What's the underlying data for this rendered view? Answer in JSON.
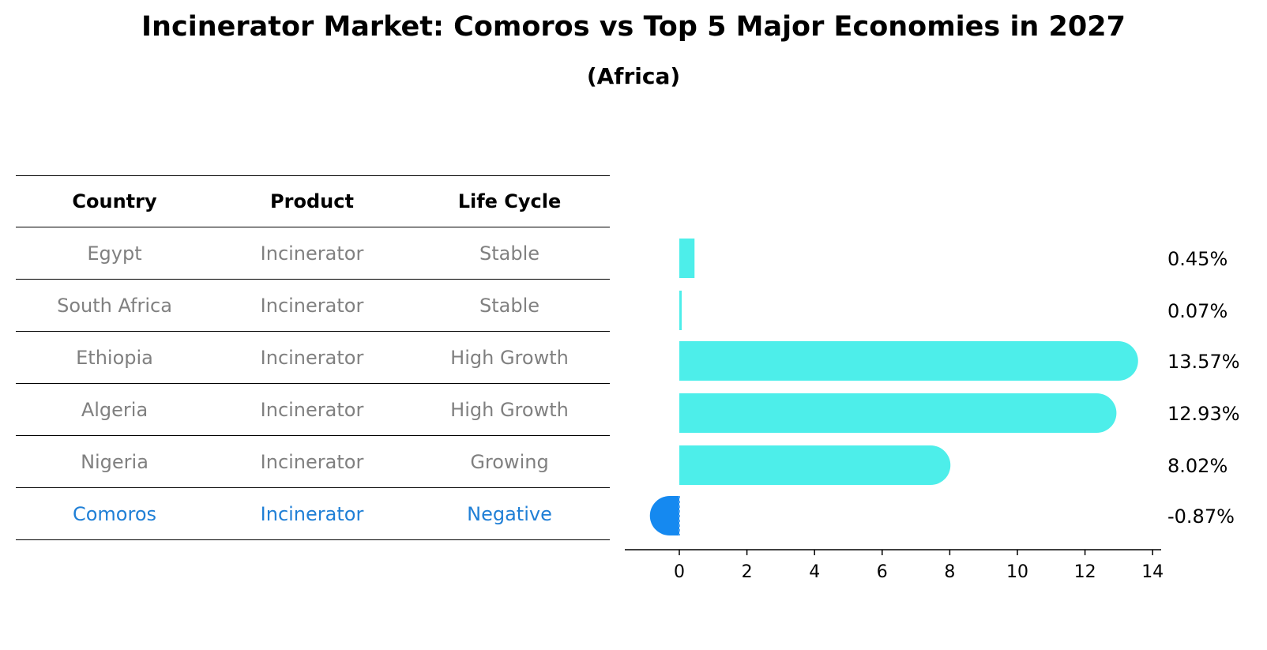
{
  "chart_data": {
    "type": "bar",
    "orientation": "horizontal",
    "title": "Incinerator Market: Comoros vs Top 5 Major Economies in 2027",
    "subtitle": "(Africa)",
    "table": {
      "headers": [
        "Country",
        "Product",
        "Life Cycle"
      ],
      "rows": [
        [
          "Egypt",
          "Incinerator",
          "Stable"
        ],
        [
          "South Africa",
          "Incinerator",
          "Stable"
        ],
        [
          "Ethiopia",
          "Incinerator",
          "High Growth"
        ],
        [
          "Algeria",
          "Incinerator",
          "High Growth"
        ],
        [
          "Nigeria",
          "Incinerator",
          "Growing"
        ],
        [
          "Comoros",
          "Incinerator",
          "Negative"
        ]
      ],
      "highlight_row": 5
    },
    "categories": [
      "Egypt",
      "South Africa",
      "Ethiopia",
      "Algeria",
      "Nigeria",
      "Comoros"
    ],
    "values": [
      0.45,
      0.07,
      13.57,
      12.93,
      8.02,
      -0.87
    ],
    "value_labels": [
      "0.45%",
      "0.07%",
      "13.57%",
      "12.93%",
      "8.02%",
      "-0.87%"
    ],
    "xticks": [
      "0",
      "2",
      "4",
      "6",
      "8",
      "10",
      "12",
      "14"
    ],
    "xlim": [
      -1.6,
      14.3
    ],
    "grid": false,
    "colors": {
      "bar": "#4deeea",
      "highlight": "#1589f0",
      "highlight_text": "#1f7fd6",
      "muted_text": "#808080"
    }
  }
}
